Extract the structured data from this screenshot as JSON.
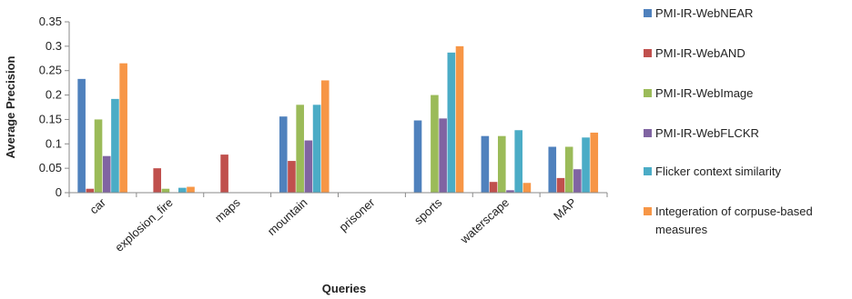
{
  "chart_data": {
    "type": "bar",
    "title": "",
    "xlabel": "Queries",
    "ylabel": "Average Precision",
    "ylim": [
      0,
      0.35
    ],
    "yticks": [
      "0",
      "0.05",
      "0.1",
      "0.15",
      "0.2",
      "0.25",
      "0.3",
      "0.35"
    ],
    "grid": false,
    "legend_position": "right",
    "categories": [
      "car",
      "explosion_fire",
      "maps",
      "mountain",
      "prisoner",
      "sports",
      "waterscape",
      "MAP"
    ],
    "series": [
      {
        "name": "PMI-IR-WebNEAR",
        "color": "#4f81bd",
        "values": [
          0.233,
          0,
          0,
          0.156,
          0,
          0.148,
          0.116,
          0.094
        ]
      },
      {
        "name": "PMI-IR-WebAND",
        "color": "#c0504d",
        "values": [
          0.008,
          0.05,
          0.078,
          0.065,
          0,
          0,
          0.022,
          0.03
        ]
      },
      {
        "name": "PMI-IR-WebImage",
        "color": "#9bbb59",
        "values": [
          0.15,
          0.008,
          0,
          0.18,
          0,
          0.2,
          0.116,
          0.094
        ]
      },
      {
        "name": "PMI-IR-WebFLCKR",
        "color": "#8064a2",
        "values": [
          0.075,
          0,
          0,
          0.107,
          0,
          0.152,
          0.005,
          0.048
        ]
      },
      {
        "name": "Flicker context similarity",
        "color": "#4bacc6",
        "values": [
          0.192,
          0.01,
          0,
          0.18,
          0,
          0.287,
          0.128,
          0.113
        ]
      },
      {
        "name": "Integeration of corpuse-based measures",
        "color": "#f79646",
        "values": [
          0.265,
          0.012,
          0,
          0.23,
          0,
          0.3,
          0.02,
          0.123
        ]
      }
    ],
    "legend_lines": [
      [
        "PMI-IR-WebNEAR"
      ],
      [
        "PMI-IR-WebAND"
      ],
      [
        "PMI-IR-WebImage"
      ],
      [
        "PMI-IR-WebFLCKR"
      ],
      [
        "Flicker context similarity"
      ],
      [
        "Integeration of corpuse-based",
        "measures"
      ]
    ]
  }
}
